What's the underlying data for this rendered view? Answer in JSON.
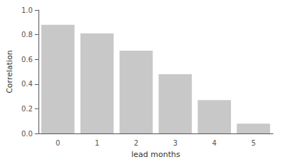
{
  "chart_data": {
    "type": "bar",
    "categories": [
      0,
      1,
      2,
      3,
      4,
      5
    ],
    "values": [
      0.88,
      0.81,
      0.67,
      0.48,
      0.27,
      0.08
    ],
    "color": "#c8c8c8",
    "xlabel": "lead months",
    "ylabel": "Correlation",
    "ylim": [
      0.0,
      1.0
    ],
    "yticks": [
      {
        "value": 0.0,
        "label": "0.0"
      },
      0.2,
      0.4,
      0.6,
      0.8,
      {
        "value": 1.0,
        "label": "1.0"
      }
    ],
    "grid": false
  }
}
